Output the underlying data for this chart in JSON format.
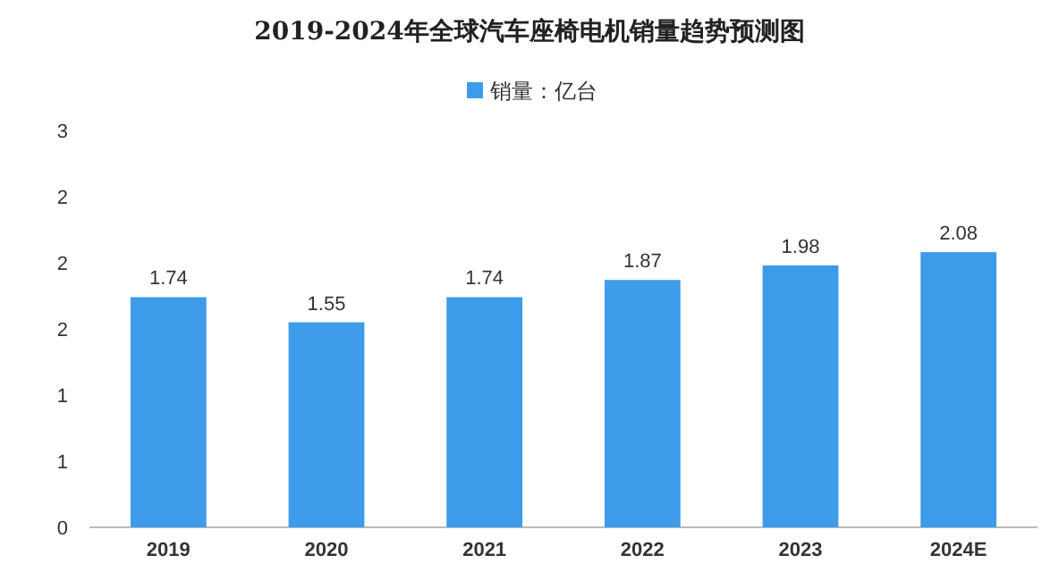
{
  "chart_data": {
    "type": "bar",
    "title": "2019-2024年全球汽车座椅电机销量趋势预测图",
    "categories": [
      "2019",
      "2020",
      "2021",
      "2022",
      "2023",
      "2024E"
    ],
    "series": [
      {
        "name": "销量：亿台",
        "color": "#3d9be9",
        "values": [
          1.74,
          1.55,
          1.74,
          1.87,
          1.98,
          2.08
        ]
      }
    ],
    "ylim": [
      0,
      3
    ],
    "yticks": [
      0,
      {
        "value": 0.5,
        "label": "1"
      },
      1,
      {
        "value": 1.5,
        "label": "2"
      },
      2,
      {
        "value": 2.5,
        "label": "2"
      },
      3
    ],
    "data_labels": true,
    "legend": "top"
  }
}
